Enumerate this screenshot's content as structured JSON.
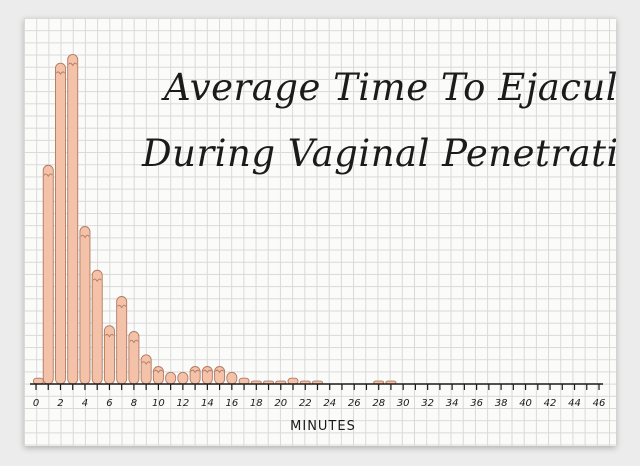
{
  "chart_data": {
    "type": "bar",
    "title": [
      "Average Time To Ejaculate",
      "During Vaginal Penetration"
    ],
    "xlabel": "MINUTES",
    "ylabel": "",
    "x": [
      0,
      1,
      2,
      3,
      4,
      5,
      6,
      7,
      8,
      9,
      10,
      11,
      12,
      13,
      14,
      15,
      16,
      17,
      18,
      19,
      20,
      21,
      22,
      23,
      24,
      25,
      26,
      27,
      28,
      29,
      30,
      31,
      32,
      33,
      34,
      35,
      36,
      37,
      38,
      39,
      40,
      41,
      42,
      43,
      44,
      45,
      46
    ],
    "values": [
      2,
      75,
      110,
      113,
      54,
      39,
      20,
      30,
      18,
      10,
      6,
      4,
      4,
      6,
      6,
      6,
      4,
      2,
      1,
      1,
      1,
      2,
      1,
      1,
      0,
      0,
      0,
      0,
      1,
      1,
      0,
      0,
      0,
      0,
      0,
      0,
      0,
      0,
      0,
      0,
      0,
      0,
      0,
      0,
      0,
      0,
      0
    ],
    "xticks": [
      0,
      2,
      4,
      6,
      8,
      10,
      12,
      14,
      16,
      18,
      20,
      22,
      24,
      26,
      28,
      30,
      32,
      34,
      36,
      38,
      40,
      42,
      44,
      46
    ],
    "xlim": [
      0,
      46
    ],
    "ylim": [
      0,
      120
    ],
    "grid": true,
    "colors": {
      "bar_fill": "#f4c1a9",
      "bar_stroke": "#b07a62",
      "axis": "#1b1b1b"
    }
  }
}
